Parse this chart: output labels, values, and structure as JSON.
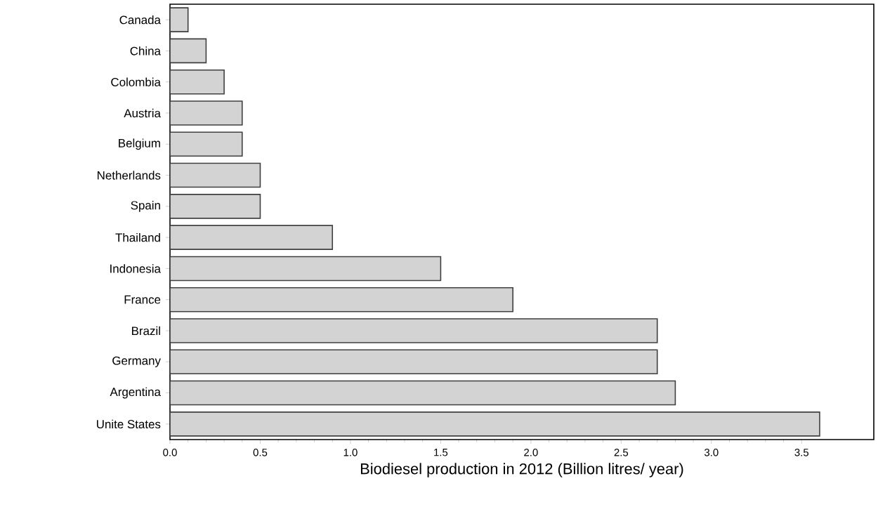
{
  "chart_data": {
    "type": "bar",
    "orientation": "horizontal",
    "xlabel": "Biodiesel production in 2012 (Billion litres/ year)",
    "categories": [
      "Canada",
      "China",
      "Colombia",
      "Austria",
      "Belgium",
      "Netherlands",
      "Spain",
      "Thailand",
      "Indonesia",
      "France",
      "Brazil",
      "Germany",
      "Argentina",
      "Unite States"
    ],
    "values": [
      0.1,
      0.2,
      0.3,
      0.4,
      0.4,
      0.5,
      0.5,
      0.9,
      1.5,
      1.9,
      2.7,
      2.7,
      2.8,
      3.6
    ],
    "color": "#d3d3d3",
    "xlim": [
      0,
      3.9
    ],
    "xticks": [
      {
        "value": 0,
        "label": "0.0"
      },
      0.5,
      {
        "value": 1,
        "label": "1.0"
      },
      1.5,
      {
        "value": 2,
        "label": "2.0"
      },
      2.5,
      {
        "value": 3,
        "label": "3.0"
      },
      3.5
    ]
  }
}
